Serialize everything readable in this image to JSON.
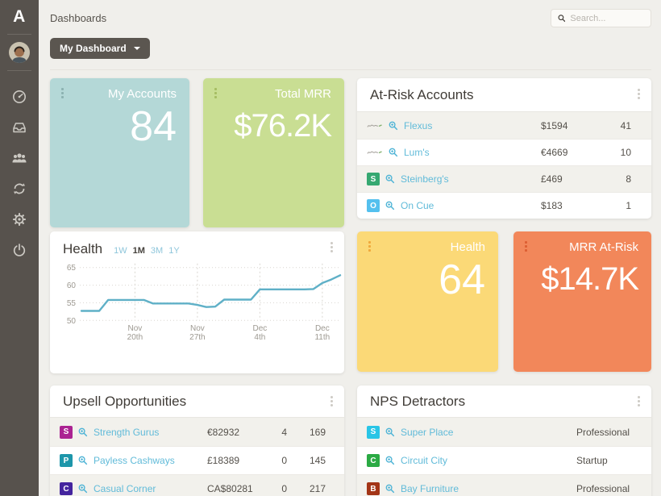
{
  "page": {
    "title": "Dashboards"
  },
  "topbar": {
    "search_placeholder": "Search...",
    "dashboard_selector_label": "My Dashboard"
  },
  "sidebar": {
    "logo": "A",
    "icons": [
      "dashboard",
      "inbox",
      "customers",
      "sync",
      "settings",
      "power"
    ]
  },
  "stat_cards": {
    "my_accounts": {
      "title": "My Accounts",
      "value": "84",
      "bg": "#b4d8d7",
      "handle_color": "#8cb2b1"
    },
    "total_mrr": {
      "title": "Total MRR",
      "value": "$76.2K",
      "bg": "#c9de93",
      "handle_color": "#a6bd63"
    },
    "health": {
      "title": "Health",
      "value": "64",
      "bg": "#fbd977",
      "handle_color": "#f0a93c"
    },
    "mrr_at_risk": {
      "title": "MRR At-Risk",
      "value": "$14.7K",
      "bg": "#f2875a",
      "handle_color": "#dd5f33"
    }
  },
  "at_risk_accounts": {
    "title": "At-Risk Accounts",
    "rows": [
      {
        "name": "Flexus",
        "value": "$1594",
        "count": "41"
      },
      {
        "name": "Lum's",
        "value": "€4669",
        "count": "10"
      },
      {
        "name": "Steinberg's",
        "value": "£469",
        "count": "8",
        "letter": "S",
        "color": "#36a871"
      },
      {
        "name": "On Cue",
        "value": "$183",
        "count": "1",
        "letter": "O",
        "color": "#54c0ee"
      }
    ]
  },
  "upsell_opportunities": {
    "title": "Upsell Opportunities",
    "rows": [
      {
        "letter": "S",
        "color": "#ab2392",
        "name": "Strength Gurus",
        "value": "€82932",
        "col2": "4",
        "col3": "169"
      },
      {
        "letter": "P",
        "color": "#1d96aa",
        "name": "Payless Cashways",
        "value": "£18389",
        "col2": "0",
        "col3": "145"
      },
      {
        "letter": "C",
        "color": "#44249e",
        "name": "Casual Corner",
        "value": "CA$80281",
        "col2": "0",
        "col3": "217"
      }
    ]
  },
  "nps_detractors": {
    "title": "NPS Detractors",
    "rows": [
      {
        "letter": "S",
        "color": "#29c5e6",
        "name": "Super Place",
        "plan": "Professional"
      },
      {
        "letter": "C",
        "color": "#2baa44",
        "name": "Circuit City",
        "plan": "Startup"
      },
      {
        "letter": "B",
        "color": "#a33517",
        "name": "Bay Furniture",
        "plan": "Professional"
      }
    ]
  },
  "chart_data": {
    "type": "line",
    "title": "Health",
    "periods": [
      "1W",
      "1M",
      "3M",
      "1Y"
    ],
    "active_period": "1M",
    "series": [
      {
        "name": "Health score",
        "values": [
          52.7,
          52.7,
          52.7,
          55.8,
          55.8,
          55.8,
          55.8,
          55.8,
          54.8,
          54.8,
          54.8,
          54.8,
          54.8,
          54.4,
          53.8,
          53.9,
          55.9,
          55.9,
          55.9,
          55.9,
          58.8,
          58.8,
          58.8,
          58.8,
          58.8,
          58.8,
          58.9,
          60.6,
          61.6,
          62.8
        ]
      }
    ],
    "x_ticks": [
      {
        "index": 6,
        "line1": "Nov",
        "line2": "20th"
      },
      {
        "index": 13,
        "line1": "Nov",
        "line2": "27th"
      },
      {
        "index": 20,
        "line1": "Dec",
        "line2": "4th"
      },
      {
        "index": 27,
        "line1": "Dec",
        "line2": "11th"
      }
    ],
    "yticks": [
      50,
      55,
      60,
      65
    ],
    "ylim": [
      50,
      65
    ],
    "grid": true,
    "legend": "none",
    "line_color": "#5fb0c7"
  }
}
